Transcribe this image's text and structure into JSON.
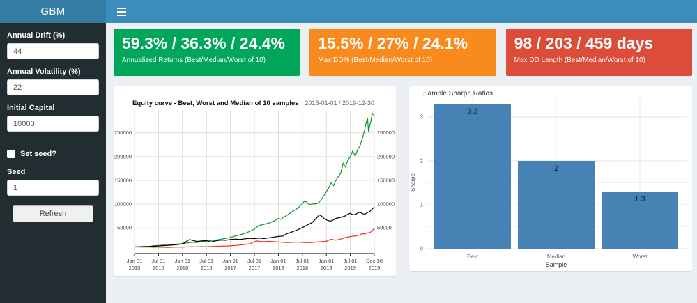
{
  "app": {
    "title": "GBM"
  },
  "header": {
    "menu_icon": "hamburger-icon"
  },
  "sidebar": {
    "fields": [
      {
        "label": "Annual Drift (%)",
        "value": "44"
      },
      {
        "label": "Annual Volatility (%)",
        "value": "22"
      },
      {
        "label": "Initial Capital",
        "value": "10000"
      }
    ],
    "checkbox": {
      "label": "Set seed?",
      "checked": false
    },
    "seed_field": {
      "label": "Seed",
      "value": "1"
    },
    "refresh_label": "Refresh"
  },
  "value_boxes": [
    {
      "value": "59.3% / 36.3% / 24.4%",
      "subtitle": "Annualized Returns (Best/Median/Worst of 10)",
      "color": "#00a65a"
    },
    {
      "value": "15.5% / 27% / 24.1%",
      "subtitle": "Max DD% (Best/Median/Worst of 10)",
      "color": "#f98b1e"
    },
    {
      "value": "98 / 203 / 459 days",
      "subtitle": "Max DD Length (Best/Median/Worst of 10)",
      "color": "#dd4b39"
    }
  ],
  "chart_data": [
    {
      "type": "line",
      "title": "Equity curve - Best, Worst and Median of 10 samples",
      "subtitle_right": "2015-01-01 / 2019-12-30",
      "x_range": [
        2015.0,
        2020.0
      ],
      "y_range": [
        -4000,
        295000
      ],
      "grid": true,
      "grid_color": "#d9d9d9",
      "y_ticks": [
        50000,
        100000,
        150000,
        200000,
        250000
      ],
      "y_tick_labels": [
        "50000",
        "100000",
        "150000",
        "200000",
        "250000"
      ],
      "x_ticks": [
        {
          "pos": 2015.0,
          "label": [
            "Jan 01",
            "2015"
          ]
        },
        {
          "pos": 2015.5,
          "label": [
            "Jul 01",
            "2015"
          ]
        },
        {
          "pos": 2016.0,
          "label": [
            "Jan 01",
            "2016"
          ]
        },
        {
          "pos": 2016.5,
          "label": [
            "Jul 01",
            "2016"
          ]
        },
        {
          "pos": 2017.0,
          "label": [
            "Jan 01",
            "2017"
          ]
        },
        {
          "pos": 2017.5,
          "label": [
            "Jul 01",
            "2017"
          ]
        },
        {
          "pos": 2018.0,
          "label": [
            "Jan 01",
            "2018"
          ]
        },
        {
          "pos": 2018.5,
          "label": [
            "Jul 01",
            "2018"
          ]
        },
        {
          "pos": 2019.0,
          "label": [
            "Jan 01",
            "2019"
          ]
        },
        {
          "pos": 2019.5,
          "label": [
            "Jul 01",
            "2019"
          ]
        },
        {
          "pos": 2020.0,
          "label": [
            "Dec 30",
            "2019"
          ]
        }
      ],
      "series": [
        {
          "name": "Best",
          "color": "#0f8f25",
          "points": [
            [
              2015.0,
              10000
            ],
            [
              2015.1,
              10400
            ],
            [
              2015.2,
              11200
            ],
            [
              2015.3,
              11000
            ],
            [
              2015.4,
              12500
            ],
            [
              2015.5,
              13200
            ],
            [
              2015.6,
              14000
            ],
            [
              2015.7,
              13600
            ],
            [
              2015.8,
              15000
            ],
            [
              2015.9,
              16000
            ],
            [
              2016.0,
              17000
            ],
            [
              2016.1,
              18500
            ],
            [
              2016.2,
              19800
            ],
            [
              2016.3,
              19200
            ],
            [
              2016.4,
              21000
            ],
            [
              2016.5,
              22000
            ],
            [
              2016.6,
              23500
            ],
            [
              2016.7,
              24500
            ],
            [
              2016.8,
              26000
            ],
            [
              2016.9,
              28000
            ],
            [
              2017.0,
              30000
            ],
            [
              2017.1,
              33000
            ],
            [
              2017.2,
              35500
            ],
            [
              2017.3,
              38500
            ],
            [
              2017.4,
              42500
            ],
            [
              2017.5,
              47500
            ],
            [
              2017.55,
              52000
            ],
            [
              2017.6,
              55000
            ],
            [
              2017.7,
              57500
            ],
            [
              2017.8,
              60000
            ],
            [
              2017.9,
              64000
            ],
            [
              2018.0,
              70000
            ],
            [
              2018.05,
              68000
            ],
            [
              2018.1,
              72000
            ],
            [
              2018.2,
              78000
            ],
            [
              2018.3,
              85000
            ],
            [
              2018.4,
              91000
            ],
            [
              2018.45,
              96000
            ],
            [
              2018.5,
              101000
            ],
            [
              2018.55,
              107000
            ],
            [
              2018.6,
              103000
            ],
            [
              2018.65,
              99000
            ],
            [
              2018.7,
              100000
            ],
            [
              2018.8,
              101000
            ],
            [
              2018.85,
              104000
            ],
            [
              2018.9,
              110000
            ],
            [
              2018.95,
              118000
            ],
            [
              2019.0,
              126000
            ],
            [
              2019.05,
              134000
            ],
            [
              2019.1,
              145000
            ],
            [
              2019.15,
              139000
            ],
            [
              2019.2,
              150000
            ],
            [
              2019.25,
              158000
            ],
            [
              2019.3,
              165000
            ],
            [
              2019.35,
              186000
            ],
            [
              2019.4,
              178000
            ],
            [
              2019.45,
              193000
            ],
            [
              2019.5,
              200000
            ],
            [
              2019.55,
              212000
            ],
            [
              2019.6,
              201000
            ],
            [
              2019.65,
              214000
            ],
            [
              2019.7,
              222000
            ],
            [
              2019.75,
              238000
            ],
            [
              2019.8,
              256000
            ],
            [
              2019.83,
              272000
            ],
            [
              2019.86,
              281000
            ],
            [
              2019.88,
              252000
            ],
            [
              2019.9,
              262000
            ],
            [
              2019.93,
              276000
            ],
            [
              2019.96,
              291000
            ],
            [
              2020.0,
              286000
            ]
          ]
        },
        {
          "name": "Median",
          "color": "#000000",
          "points": [
            [
              2015.0,
              10000
            ],
            [
              2015.1,
              10200
            ],
            [
              2015.2,
              10100
            ],
            [
              2015.3,
              10800
            ],
            [
              2015.4,
              11500
            ],
            [
              2015.5,
              11800
            ],
            [
              2015.6,
              12500
            ],
            [
              2015.7,
              13400
            ],
            [
              2015.8,
              14200
            ],
            [
              2015.9,
              15000
            ],
            [
              2016.0,
              16500
            ],
            [
              2016.05,
              19000
            ],
            [
              2016.1,
              23000
            ],
            [
              2016.15,
              25500
            ],
            [
              2016.2,
              24000
            ],
            [
              2016.3,
              21500
            ],
            [
              2016.4,
              22500
            ],
            [
              2016.5,
              23500
            ],
            [
              2016.55,
              21500
            ],
            [
              2016.6,
              20500
            ],
            [
              2016.7,
              23000
            ],
            [
              2016.8,
              24500
            ],
            [
              2016.9,
              24000
            ],
            [
              2017.0,
              25500
            ],
            [
              2017.1,
              26500
            ],
            [
              2017.2,
              25500
            ],
            [
              2017.3,
              27000
            ],
            [
              2017.4,
              28000
            ],
            [
              2017.5,
              27500
            ],
            [
              2017.6,
              28500
            ],
            [
              2017.7,
              27500
            ],
            [
              2017.8,
              29000
            ],
            [
              2017.9,
              30500
            ],
            [
              2018.0,
              32000
            ],
            [
              2018.1,
              33000
            ],
            [
              2018.15,
              36500
            ],
            [
              2018.2,
              38500
            ],
            [
              2018.3,
              42000
            ],
            [
              2018.4,
              46000
            ],
            [
              2018.5,
              50500
            ],
            [
              2018.55,
              53000
            ],
            [
              2018.6,
              56000
            ],
            [
              2018.7,
              61000
            ],
            [
              2018.75,
              66000
            ],
            [
              2018.8,
              71000
            ],
            [
              2018.85,
              77500
            ],
            [
              2018.9,
              75000
            ],
            [
              2018.95,
              70000
            ],
            [
              2019.0,
              67000
            ],
            [
              2019.05,
              65000
            ],
            [
              2019.1,
              64500
            ],
            [
              2019.15,
              67000
            ],
            [
              2019.2,
              70000
            ],
            [
              2019.3,
              72000
            ],
            [
              2019.4,
              75500
            ],
            [
              2019.45,
              79000
            ],
            [
              2019.5,
              80500
            ],
            [
              2019.55,
              78000
            ],
            [
              2019.6,
              77500
            ],
            [
              2019.65,
              81000
            ],
            [
              2019.7,
              83000
            ],
            [
              2019.75,
              80000
            ],
            [
              2019.8,
              78500
            ],
            [
              2019.85,
              82000
            ],
            [
              2019.9,
              84000
            ],
            [
              2019.95,
              89000
            ],
            [
              2020.0,
              94000
            ]
          ]
        },
        {
          "name": "Worst",
          "color": "#fa2b1d",
          "points": [
            [
              2015.0,
              10000
            ],
            [
              2015.1,
              9800
            ],
            [
              2015.2,
              9600
            ],
            [
              2015.3,
              9900
            ],
            [
              2015.4,
              9400
            ],
            [
              2015.5,
              9700
            ],
            [
              2015.6,
              9200
            ],
            [
              2015.7,
              9000
            ],
            [
              2015.8,
              9400
            ],
            [
              2015.9,
              9700
            ],
            [
              2016.0,
              9500
            ],
            [
              2016.1,
              10000
            ],
            [
              2016.2,
              10300
            ],
            [
              2016.3,
              10100
            ],
            [
              2016.4,
              10600
            ],
            [
              2016.5,
              10400
            ],
            [
              2016.6,
              10900
            ],
            [
              2016.7,
              11200
            ],
            [
              2016.8,
              11600
            ],
            [
              2016.9,
              11900
            ],
            [
              2017.0,
              12300
            ],
            [
              2017.1,
              13200
            ],
            [
              2017.2,
              14000
            ],
            [
              2017.3,
              15000
            ],
            [
              2017.4,
              16500
            ],
            [
              2017.45,
              18500
            ],
            [
              2017.5,
              21000
            ],
            [
              2017.55,
              22500
            ],
            [
              2017.6,
              22000
            ],
            [
              2017.7,
              21000
            ],
            [
              2017.8,
              21800
            ],
            [
              2017.9,
              21200
            ],
            [
              2018.0,
              20300
            ],
            [
              2018.1,
              19600
            ],
            [
              2018.2,
              19000
            ],
            [
              2018.3,
              19800
            ],
            [
              2018.4,
              20200
            ],
            [
              2018.5,
              19400
            ],
            [
              2018.6,
              19000
            ],
            [
              2018.7,
              19300
            ],
            [
              2018.8,
              20200
            ],
            [
              2018.9,
              21000
            ],
            [
              2019.0,
              22000
            ],
            [
              2019.05,
              24000
            ],
            [
              2019.1,
              26000
            ],
            [
              2019.15,
              25000
            ],
            [
              2019.2,
              24200
            ],
            [
              2019.3,
              26500
            ],
            [
              2019.35,
              28000
            ],
            [
              2019.4,
              30000
            ],
            [
              2019.5,
              31500
            ],
            [
              2019.55,
              33000
            ],
            [
              2019.6,
              32500
            ],
            [
              2019.65,
              34000
            ],
            [
              2019.7,
              35500
            ],
            [
              2019.75,
              38000
            ],
            [
              2019.8,
              37000
            ],
            [
              2019.85,
              39500
            ],
            [
              2019.9,
              39800
            ],
            [
              2019.95,
              43000
            ],
            [
              2020.0,
              49500
            ]
          ]
        }
      ]
    },
    {
      "type": "bar",
      "title": "Sample Sharpe Ratios",
      "categories": [
        "Best",
        "Median",
        "Worst"
      ],
      "values": [
        3.3,
        2,
        1.3
      ],
      "bar_labels": [
        "3.3",
        "2",
        "1.3"
      ],
      "xlabel": "Sample",
      "ylabel": "Sharpe",
      "y_ticks": [
        0,
        1,
        2,
        3
      ],
      "y_minor_ticks": [
        0.5,
        1.5,
        2.5
      ],
      "ylim": [
        0,
        3.45
      ],
      "bar_color": "#4682b4",
      "grid": true,
      "legend": false
    }
  ]
}
